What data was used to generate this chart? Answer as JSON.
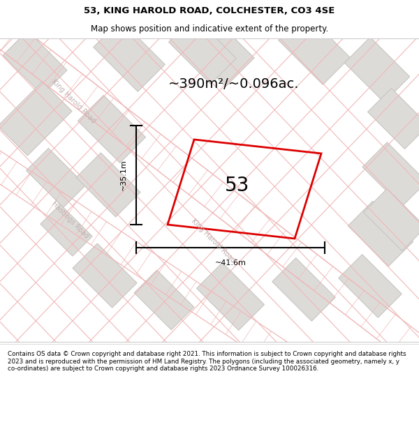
{
  "title_line1": "53, KING HAROLD ROAD, COLCHESTER, CO3 4SE",
  "title_line2": "Map shows position and indicative extent of the property.",
  "area_label": "~390m²/~0.096ac.",
  "property_number": "53",
  "dim_width": "~41.6m",
  "dim_height": "~35.1m",
  "bg_color": "#f2f0ee",
  "block_color": "#dddbd8",
  "block_edge_color": "#c8c5c1",
  "road_line_color": "#f0b8b8",
  "road_label_color": "#c0b0b0",
  "plot_edge_color": "#dd0000",
  "footer_text": "Contains OS data © Crown copyright and database right 2021. This information is subject to Crown copyright and database rights 2023 and is reproduced with the permission of HM Land Registry. The polygons (including the associated geometry, namely x, y co-ordinates) are subject to Crown copyright and database rights 2023 Ordnance Survey 100026316.",
  "road1_label": "King Harold Road",
  "road2_label": "Hastings Road",
  "road_khr_label2": "King Harold Road",
  "title_fontsize": 9.5,
  "subtitle_fontsize": 8.5,
  "footer_fontsize": 6.3,
  "area_fontsize": 14,
  "number_fontsize": 20,
  "dim_fontsize": 8,
  "road_label_fontsize": 7
}
